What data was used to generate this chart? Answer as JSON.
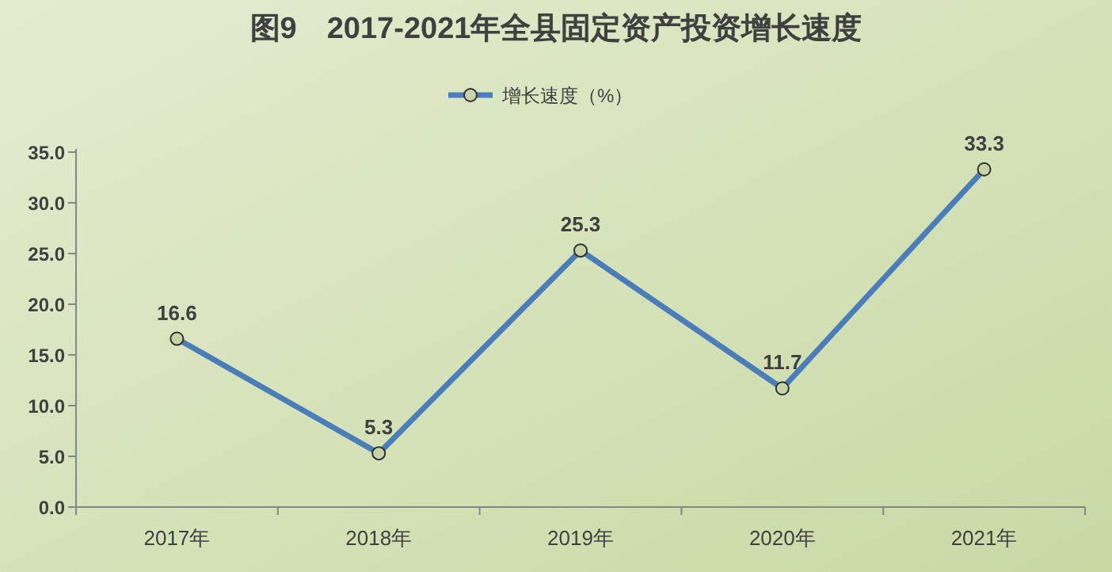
{
  "chart_data": {
    "type": "line",
    "title": "图9　2017-2021年全县固定资产投资增长速度",
    "categories": [
      "2017年",
      "2018年",
      "2019年",
      "2020年",
      "2021年"
    ],
    "series": [
      {
        "name": "增长速度（%）",
        "color": "#4a7ebb",
        "values": [
          16.6,
          5.3,
          25.3,
          11.7,
          33.3
        ]
      }
    ],
    "ylim": [
      0,
      35
    ],
    "yticks": [
      {
        "value": 0,
        "label": "0.0"
      },
      {
        "value": 5,
        "label": "5.0"
      },
      {
        "value": 10,
        "label": "10.0"
      },
      {
        "value": 15,
        "label": "15.0"
      },
      {
        "value": 20,
        "label": "20.0"
      },
      {
        "value": 25,
        "label": "25.0"
      },
      {
        "value": 30,
        "label": "30.0"
      },
      {
        "value": 35,
        "label": "35.0"
      }
    ],
    "marker": "circle",
    "data_labels": true,
    "legend": "top",
    "grid": false
  }
}
